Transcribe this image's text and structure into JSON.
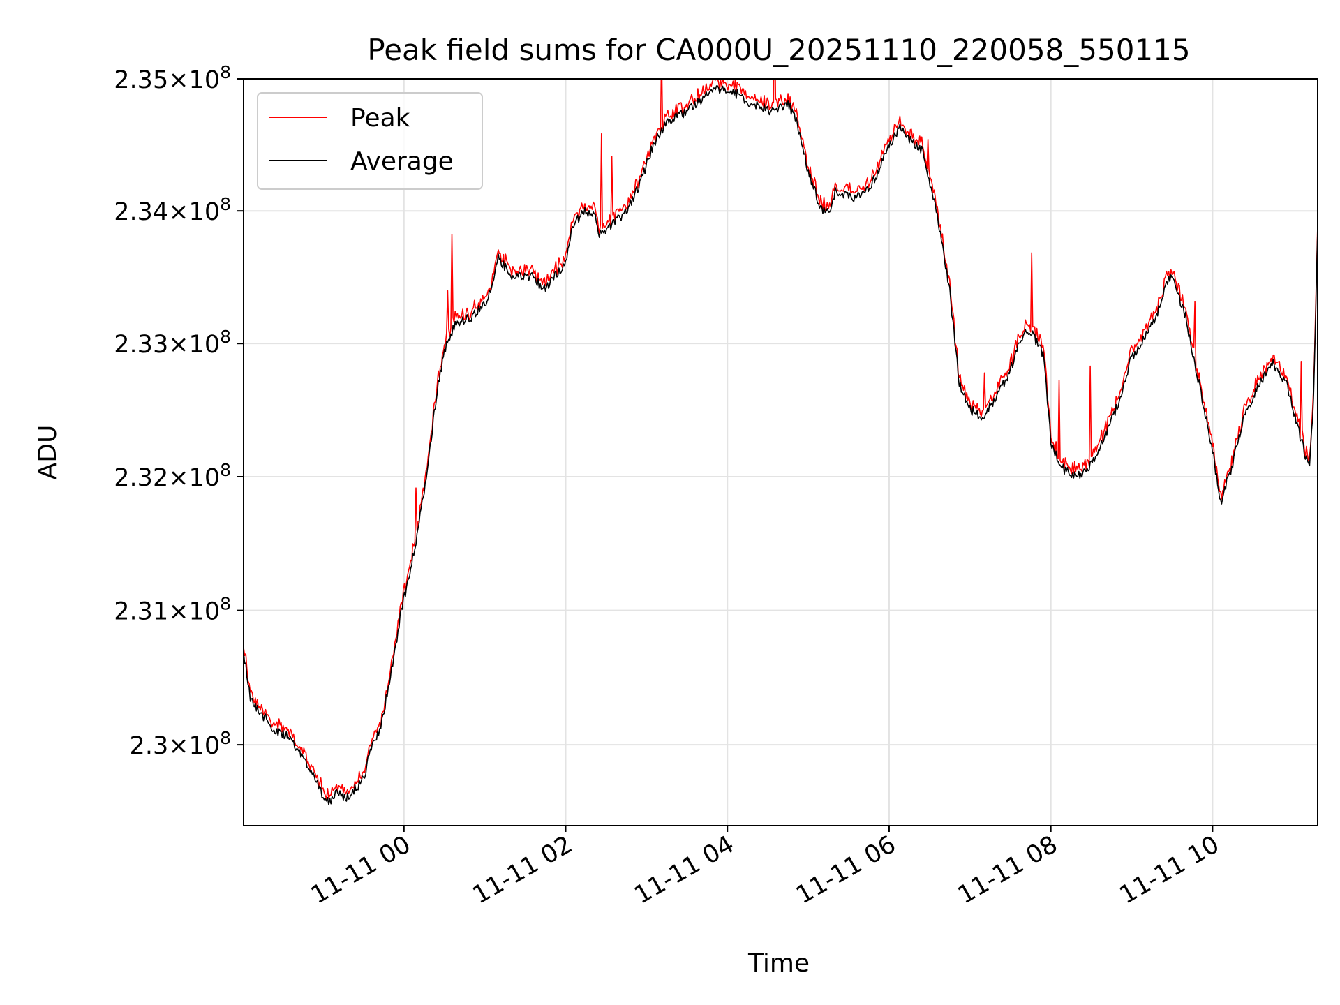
{
  "chart_data": {
    "type": "line",
    "title": "Peak field sums for CA000U_20251110_220058_550115",
    "xlabel": "Time",
    "ylabel": "ADU",
    "y_scale": "log",
    "grid": true,
    "legend_position": "top-left",
    "xlim": [
      "2025-11-10 22:01",
      "2025-11-11 11:18"
    ],
    "ylim": [
      229400000,
      235000000
    ],
    "x_ticks": [
      {
        "value": "2025-11-11 00:00",
        "label": "11-11 00"
      },
      {
        "value": "2025-11-11 02:00",
        "label": "11-11 02"
      },
      {
        "value": "2025-11-11 04:00",
        "label": "11-11 04"
      },
      {
        "value": "2025-11-11 06:00",
        "label": "11-11 06"
      },
      {
        "value": "2025-11-11 08:00",
        "label": "11-11 08"
      },
      {
        "value": "2025-11-11 10:00",
        "label": "11-11 10"
      }
    ],
    "y_ticks": [
      {
        "value": 230000000,
        "mantissa": "2.3",
        "exponent": "8"
      },
      {
        "value": 231000000,
        "mantissa": "2.31",
        "exponent": "8"
      },
      {
        "value": 232000000,
        "mantissa": "2.32",
        "exponent": "8"
      },
      {
        "value": 233000000,
        "mantissa": "2.33",
        "exponent": "8"
      },
      {
        "value": 234000000,
        "mantissa": "2.34",
        "exponent": "8"
      },
      {
        "value": 235000000,
        "mantissa": "2.35",
        "exponent": "8"
      }
    ],
    "series": [
      {
        "name": "Peak",
        "color": "#ff0000"
      },
      {
        "name": "Average",
        "color": "#000000"
      }
    ],
    "average_points": [
      [
        "2025-11-10 22:01",
        230700000
      ],
      [
        "2025-11-10 22:06",
        230350000
      ],
      [
        "2025-11-10 22:15",
        230220000
      ],
      [
        "2025-11-10 22:25",
        230100000
      ],
      [
        "2025-11-10 22:35",
        230050000
      ],
      [
        "2025-11-10 22:45",
        229900000
      ],
      [
        "2025-11-10 22:55",
        229750000
      ],
      [
        "2025-11-10 23:00",
        229620000
      ],
      [
        "2025-11-10 23:05",
        229580000
      ],
      [
        "2025-11-10 23:10",
        229650000
      ],
      [
        "2025-11-10 23:15",
        229600000
      ],
      [
        "2025-11-10 23:22",
        229650000
      ],
      [
        "2025-11-10 23:30",
        229750000
      ],
      [
        "2025-11-10 23:35",
        229950000
      ],
      [
        "2025-11-10 23:42",
        230100000
      ],
      [
        "2025-11-10 23:50",
        230500000
      ],
      [
        "2025-11-10 23:58",
        231000000
      ],
      [
        "2025-11-11 00:05",
        231300000
      ],
      [
        "2025-11-11 00:12",
        231700000
      ],
      [
        "2025-11-11 00:18",
        232100000
      ],
      [
        "2025-11-11 00:24",
        232600000
      ],
      [
        "2025-11-11 00:30",
        232950000
      ],
      [
        "2025-11-11 00:38",
        233150000
      ],
      [
        "2025-11-11 00:50",
        233200000
      ],
      [
        "2025-11-11 01:00",
        233300000
      ],
      [
        "2025-11-11 01:05",
        233400000
      ],
      [
        "2025-11-11 01:10",
        233650000
      ],
      [
        "2025-11-11 01:20",
        233500000
      ],
      [
        "2025-11-11 01:35",
        233500000
      ],
      [
        "2025-11-11 01:45",
        233400000
      ],
      [
        "2025-11-11 01:55",
        233550000
      ],
      [
        "2025-11-11 02:00",
        233600000
      ],
      [
        "2025-11-11 02:05",
        233900000
      ],
      [
        "2025-11-11 02:15",
        234000000
      ],
      [
        "2025-11-11 02:22",
        233950000
      ],
      [
        "2025-11-11 02:25",
        233820000
      ],
      [
        "2025-11-11 02:35",
        233900000
      ],
      [
        "2025-11-11 02:45",
        234000000
      ],
      [
        "2025-11-11 02:55",
        234200000
      ],
      [
        "2025-11-11 03:05",
        234500000
      ],
      [
        "2025-11-11 03:15",
        234680000
      ],
      [
        "2025-11-11 03:25",
        234720000
      ],
      [
        "2025-11-11 03:35",
        234800000
      ],
      [
        "2025-11-11 03:45",
        234880000
      ],
      [
        "2025-11-11 03:55",
        234930000
      ],
      [
        "2025-11-11 04:05",
        234900000
      ],
      [
        "2025-11-11 04:15",
        234820000
      ],
      [
        "2025-11-11 04:25",
        234780000
      ],
      [
        "2025-11-11 04:35",
        234750000
      ],
      [
        "2025-11-11 04:45",
        234820000
      ],
      [
        "2025-11-11 04:52",
        234650000
      ],
      [
        "2025-11-11 05:00",
        234300000
      ],
      [
        "2025-11-11 05:10",
        234000000
      ],
      [
        "2025-11-11 05:15",
        233980000
      ],
      [
        "2025-11-11 05:20",
        234150000
      ],
      [
        "2025-11-11 05:30",
        234100000
      ],
      [
        "2025-11-11 05:40",
        234120000
      ],
      [
        "2025-11-11 05:50",
        234250000
      ],
      [
        "2025-11-11 06:00",
        234500000
      ],
      [
        "2025-11-11 06:08",
        234620000
      ],
      [
        "2025-11-11 06:15",
        234550000
      ],
      [
        "2025-11-11 06:25",
        234450000
      ],
      [
        "2025-11-11 06:35",
        234000000
      ],
      [
        "2025-11-11 06:45",
        233400000
      ],
      [
        "2025-11-11 06:52",
        232700000
      ],
      [
        "2025-11-11 07:00",
        232500000
      ],
      [
        "2025-11-11 07:10",
        232450000
      ],
      [
        "2025-11-11 07:20",
        232600000
      ],
      [
        "2025-11-11 07:30",
        232800000
      ],
      [
        "2025-11-11 07:38",
        233050000
      ],
      [
        "2025-11-11 07:45",
        233100000
      ],
      [
        "2025-11-11 07:55",
        232900000
      ],
      [
        "2025-11-11 08:00",
        232250000
      ],
      [
        "2025-11-11 08:10",
        232050000
      ],
      [
        "2025-11-11 08:20",
        232000000
      ],
      [
        "2025-11-11 08:30",
        232100000
      ],
      [
        "2025-11-11 08:40",
        232300000
      ],
      [
        "2025-11-11 08:50",
        232550000
      ],
      [
        "2025-11-11 09:00",
        232900000
      ],
      [
        "2025-11-11 09:10",
        233050000
      ],
      [
        "2025-11-11 09:20",
        233250000
      ],
      [
        "2025-11-11 09:25",
        233450000
      ],
      [
        "2025-11-11 09:30",
        233500000
      ],
      [
        "2025-11-11 09:40",
        233200000
      ],
      [
        "2025-11-11 09:50",
        232700000
      ],
      [
        "2025-11-11 10:00",
        232200000
      ],
      [
        "2025-11-11 10:06",
        231800000
      ],
      [
        "2025-11-11 10:15",
        232100000
      ],
      [
        "2025-11-11 10:25",
        232500000
      ],
      [
        "2025-11-11 10:35",
        232700000
      ],
      [
        "2025-11-11 10:45",
        232850000
      ],
      [
        "2025-11-11 10:55",
        232700000
      ],
      [
        "2025-11-11 11:05",
        232300000
      ],
      [
        "2025-11-11 11:12",
        232050000
      ],
      [
        "2025-11-11 11:15",
        232600000
      ],
      [
        "2025-11-11 11:18",
        233850000
      ]
    ]
  }
}
